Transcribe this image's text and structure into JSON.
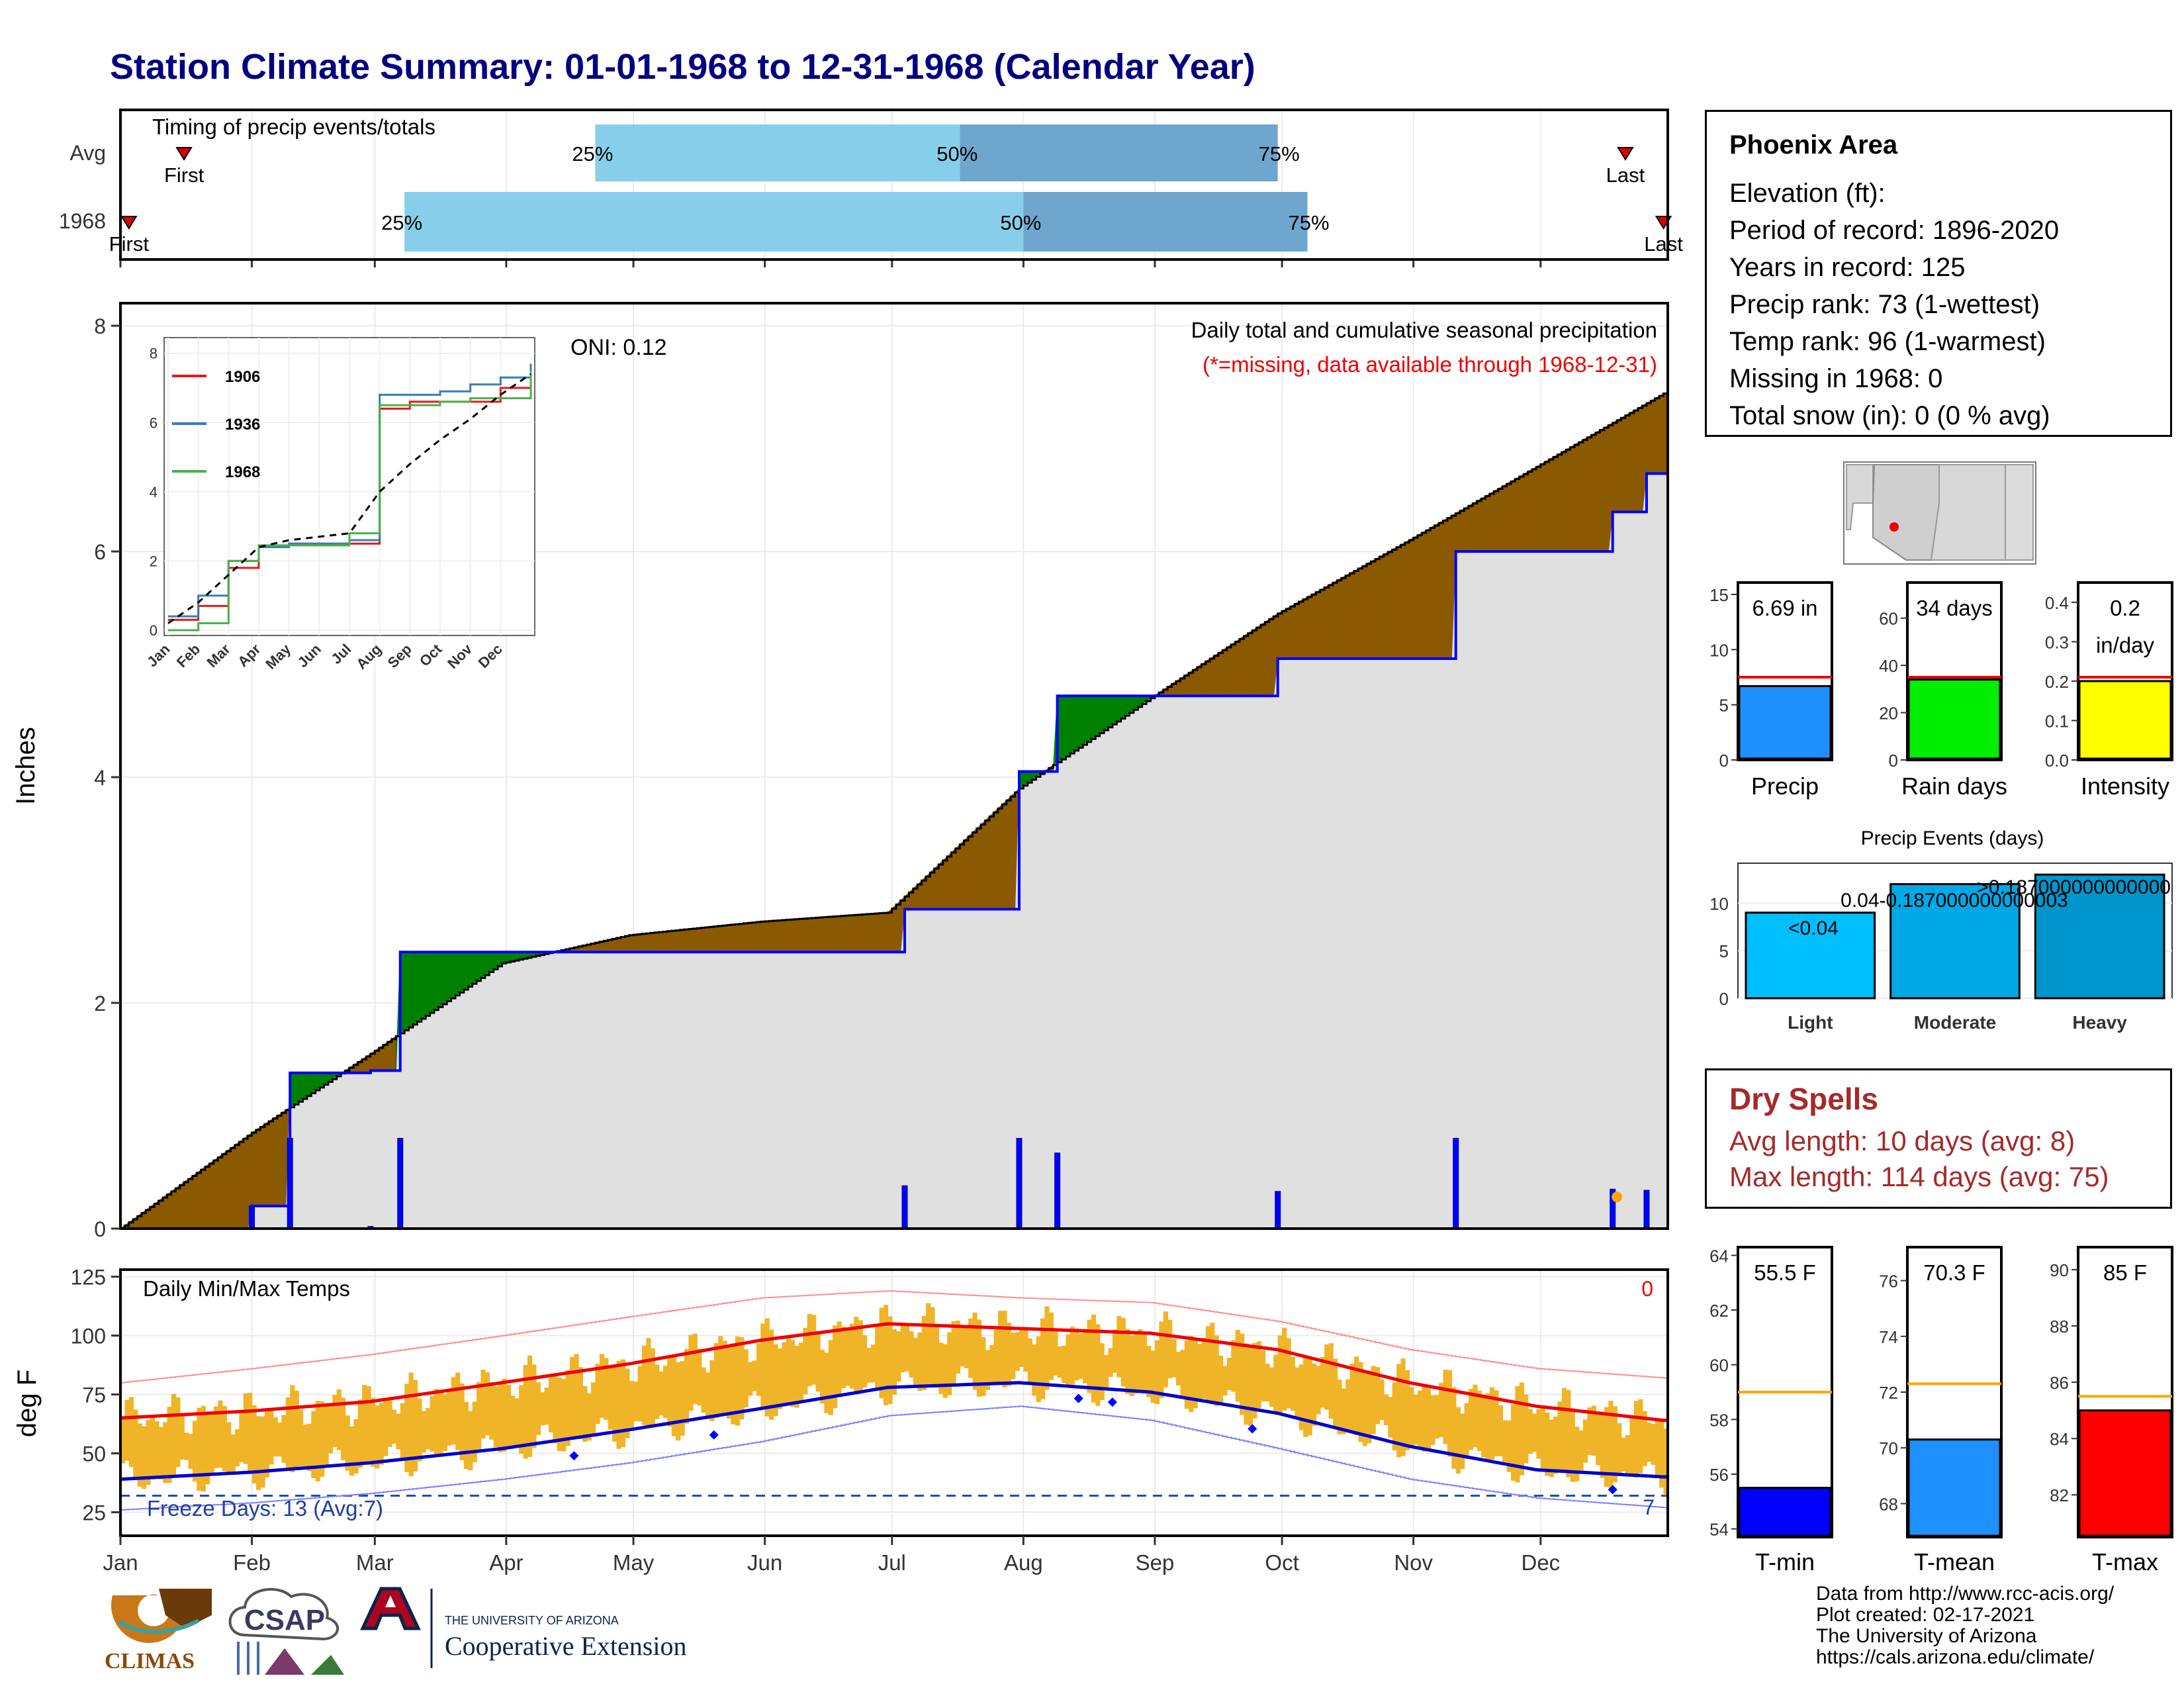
{
  "title": "Station Climate Summary: 01-01-1968 to 12-31-1968 (Calendar Year)",
  "timing_panel": {
    "label": "Timing of precip events/totals",
    "rows": [
      {
        "name": "Avg",
        "q25": "25%",
        "q50": "50%",
        "q75": "75%",
        "first": "First",
        "last": "Last",
        "q25_doy": 112,
        "q50_doy": 198,
        "q75_doy": 273,
        "first_doy": 15,
        "last_doy": 355
      },
      {
        "name": "1968",
        "q25": "25%",
        "q50": "50%",
        "q75": "75%",
        "first": "First",
        "last": "Last",
        "q25_doy": 67,
        "q50_doy": 213,
        "q75_doy": 280,
        "first_doy": 2,
        "last_doy": 364
      }
    ]
  },
  "precip_panel": {
    "ylabel": "Inches",
    "oni": "ONI: 0.12",
    "header": "Daily total and cumulative seasonal precipitation",
    "missing_note": "(*=missing, data available through 1968-12-31)",
    "yticks": [
      "0",
      "2",
      "4",
      "6",
      "8"
    ],
    "colors": {
      "above": "#8b5a00",
      "below": "#008000",
      "fill": "#e0e0e0",
      "line": "#0000ff"
    }
  },
  "inset": {
    "yticks": [
      "0",
      "2",
      "4",
      "6",
      "8"
    ],
    "xticks": [
      "Jan",
      "Feb",
      "Mar",
      "Apr",
      "May",
      "Jun",
      "Jul",
      "Aug",
      "Sep",
      "Oct",
      "Nov",
      "Dec"
    ],
    "legend": [
      {
        "name": "1906",
        "color": "#e41a1c"
      },
      {
        "name": "1936",
        "color": "#377eb8"
      },
      {
        "name": "1968",
        "color": "#4daf4a"
      }
    ]
  },
  "temp_panel": {
    "ylabel": "deg F",
    "label": "Daily Min/Max Temps",
    "red_count": "0",
    "freeze_label": "Freeze Days: 13 (Avg:7)",
    "freeze_count": "7",
    "yticks": [
      "25",
      "50",
      "75",
      "100",
      "125"
    ],
    "months": [
      "Jan",
      "Feb",
      "Mar",
      "Apr",
      "May",
      "Jun",
      "Jul",
      "Aug",
      "Sep",
      "Oct",
      "Nov",
      "Dec"
    ]
  },
  "station": {
    "name": "Phoenix Area",
    "lines": [
      "Elevation (ft):",
      "Period of record: 1896-2020",
      "Years in record: 125",
      "Precip rank: 73 (1-wettest)",
      "Temp rank: 96 (1-warmest)",
      "Missing in 1968: 0",
      "Total snow (in): 0 (0 % avg)"
    ]
  },
  "summary_bars": [
    {
      "label": "Precip",
      "value_text": "6.69 in",
      "value": 6.69,
      "avg": 7.5,
      "max": 15,
      "ticks": [
        "0",
        "5",
        "10",
        "15"
      ],
      "color": "#1e90ff"
    },
    {
      "label": "Rain days",
      "value_text": "34 days",
      "value": 34,
      "avg": 35,
      "max": 70,
      "ticks": [
        "0",
        "20",
        "40",
        "60"
      ],
      "color": "#00ee00"
    },
    {
      "label": "Intensity",
      "value_text": "0.2\nin/day",
      "value": 0.2,
      "avg": 0.21,
      "max": 0.42,
      "ticks": [
        "0.0",
        "0.1",
        "0.2",
        "0.3",
        "0.4"
      ],
      "color": "#ffff00"
    }
  ],
  "events_chart": {
    "title": "Precip Events (days)",
    "categories": [
      "Light",
      "Moderate",
      "Heavy"
    ],
    "values": [
      9,
      12,
      13
    ],
    "bar_labels": [
      "<0.04",
      "0.04-0.187000000000003",
      ">0.187000000000000"
    ],
    "ticks": [
      "0",
      "5",
      "10"
    ],
    "colors": [
      "#00bfff",
      "#00a9e6",
      "#0096cc"
    ]
  },
  "dry_spells": {
    "title": "Dry Spells",
    "avg": "Avg length: 10 days (avg: 8)",
    "max": "Max length: 114 days (avg: 75)"
  },
  "temp_bars": [
    {
      "label": "T-min",
      "value_text": "55.5 F",
      "value": 55.5,
      "avg": 59,
      "min": 53.7,
      "max": 64.3,
      "ticks": [
        "54",
        "56",
        "58",
        "60",
        "62",
        "64"
      ],
      "color": "#0000ff"
    },
    {
      "label": "T-mean",
      "value_text": "70.3 F",
      "value": 70.3,
      "avg": 72.3,
      "min": 66.8,
      "max": 77.2,
      "ticks": [
        "68",
        "70",
        "72",
        "74",
        "76"
      ],
      "color": "#1e90ff"
    },
    {
      "label": "T-max",
      "value_text": "85 F",
      "value": 85,
      "avg": 85.5,
      "min": 80.5,
      "max": 90.8,
      "ticks": [
        "82",
        "84",
        "86",
        "88",
        "90"
      ],
      "color": "#ff0000"
    }
  ],
  "credits": [
    "Data from http://www.rcc-acis.org/",
    "Plot created: 02-17-2021",
    "The University of Arizona",
    "https://cals.arizona.edu/climate/"
  ],
  "logos": {
    "climas": "CLIMAS",
    "csap": "CSAP",
    "ua_small": "THE UNIVERSITY OF ARIZONA",
    "ua_big": "Cooperative Extension"
  },
  "chart_data": [
    {
      "type": "line",
      "title": "Daily total and cumulative seasonal precipitation",
      "ylabel": "Inches",
      "ylim": [
        0,
        8.2
      ],
      "series": [
        {
          "name": "",
          "x": [
            "Jan 1",
            "Feb 1",
            "Mar 1",
            "Apr 1",
            "May 1",
            "Jun 1",
            "Jul 1",
            "Aug 1",
            "Sep 1",
            "Oct 1",
            "Nov 1",
            "Dec 1",
            "Dec 31"
          ],
          "values": [
            0.0,
            0.85,
            1.55,
            2.35,
            2.6,
            2.72,
            2.8,
            3.9,
            4.7,
            5.45,
            6.1,
            6.75,
            7.4
          ]
        },
        {
          "name": "",
          "x": [
            "Jan 1",
            "Feb 1",
            "Feb 10",
            "Mar 1",
            "Mar 8",
            "Apr 1",
            "Jul 1",
            "Jul 5",
            "Aug 1",
            "Aug 10",
            "Sep 1",
            "Oct 1",
            "Nov 12",
            "Dec 19",
            "Dec 27",
            "Dec 31"
          ],
          "values": [
            0.0,
            0.2,
            1.38,
            1.4,
            2.45,
            2.45,
            2.45,
            2.83,
            4.05,
            4.72,
            4.72,
            5.05,
            6.0,
            6.35,
            6.69,
            6.69
          ]
        }
      ]
    },
    {
      "type": "line",
      "title": "",
      "ylim": [
        0,
        8.2
      ],
      "x": [
        "Jan",
        "Feb",
        "Mar",
        "Apr",
        "May",
        "Jun",
        "Jul",
        "Aug",
        "Sep",
        "Oct",
        "Nov",
        "Dec",
        "Dec 31"
      ],
      "series": [
        {
          "name": "1906",
          "values": [
            0.3,
            0.7,
            1.8,
            2.4,
            2.5,
            2.5,
            2.5,
            6.4,
            6.6,
            6.6,
            6.6,
            7.0,
            7.5
          ]
        },
        {
          "name": "1936",
          "values": [
            0.4,
            1.0,
            2.0,
            2.4,
            2.5,
            2.5,
            2.6,
            6.8,
            6.8,
            6.9,
            7.1,
            7.3,
            7.7
          ]
        },
        {
          "name": "1968",
          "values": [
            0.0,
            0.2,
            2.0,
            2.45,
            2.45,
            2.45,
            2.8,
            6.5,
            6.5,
            6.6,
            6.7,
            6.7,
            7.5
          ]
        },
        {
          "name": "",
          "values": [
            0.2,
            0.8,
            1.6,
            2.4,
            2.6,
            2.7,
            2.8,
            4.0,
            4.8,
            5.5,
            6.1,
            6.8,
            7.4
          ]
        }
      ]
    },
    {
      "type": "line",
      "title": "Daily Min/Max Temps",
      "ylabel": "deg F",
      "ylim": [
        15,
        128
      ],
      "x": [
        "Jan 1",
        "Feb 1",
        "Mar 1",
        "Apr 1",
        "May 1",
        "Jun 1",
        "Jul 1",
        "Aug 1",
        "Sep 1",
        "Oct 1",
        "Nov 1",
        "Dec 1",
        "Dec 31"
      ],
      "series": [
        {
          "name": "",
          "values": [
            65,
            68,
            72,
            80,
            88,
            98,
            105,
            103,
            101,
            94,
            80,
            70,
            64
          ]
        },
        {
          "name": "",
          "values": [
            39,
            42,
            46,
            52,
            60,
            69,
            78,
            80,
            76,
            67,
            53,
            43,
            40
          ]
        },
        {
          "name": "",
          "values": [
            80,
            86,
            92,
            100,
            108,
            116,
            119,
            116,
            114,
            106,
            94,
            86,
            82
          ]
        },
        {
          "name": "",
          "values": [
            26,
            29,
            33,
            39,
            46,
            55,
            66,
            70,
            64,
            52,
            39,
            31,
            27
          ]
        }
      ],
      "freeze_line": 32
    }
  ]
}
